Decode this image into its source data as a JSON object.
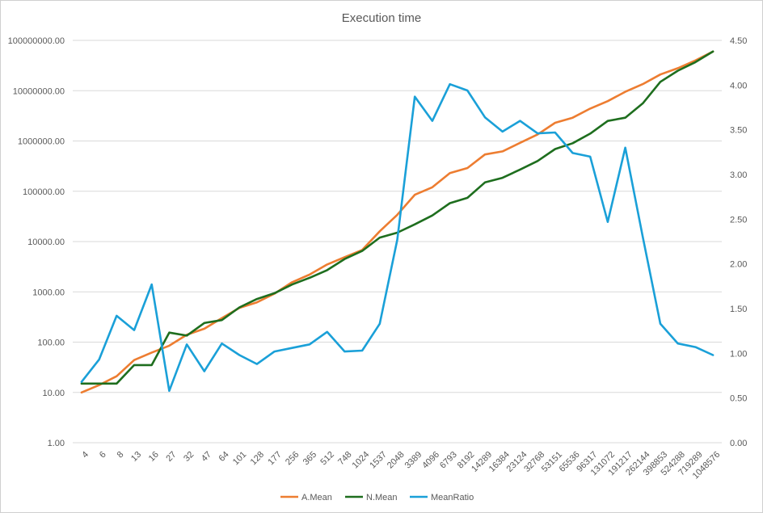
{
  "chart_data": {
    "type": "line",
    "title": "Execution time",
    "categories": [
      "4",
      "6",
      "8",
      "13",
      "16",
      "27",
      "32",
      "47",
      "64",
      "101",
      "128",
      "177",
      "256",
      "365",
      "512",
      "748",
      "1024",
      "1537",
      "2048",
      "3389",
      "4096",
      "6793",
      "8192",
      "14289",
      "16384",
      "23124",
      "32768",
      "53151",
      "65536",
      "96317",
      "131072",
      "191217",
      "262144",
      "398853",
      "524288",
      "719289",
      "1048576"
    ],
    "y_left": {
      "scale": "log",
      "ylim": [
        1,
        100000000
      ],
      "ticks": [
        1,
        10,
        100,
        1000,
        10000,
        100000,
        1000000,
        10000000,
        100000000
      ],
      "tick_labels": [
        "1.00",
        "10.00",
        "100.00",
        "1000.00",
        "10000.00",
        "100000.00",
        "1000000.00",
        "10000000.00",
        "100000000.00"
      ]
    },
    "y_right": {
      "scale": "linear",
      "ylim": [
        0,
        4.5
      ],
      "ticks": [
        0,
        0.5,
        1,
        1.5,
        2,
        2.5,
        3,
        3.5,
        4,
        4.5
      ],
      "tick_labels": [
        "0.00",
        "0.50",
        "1.00",
        "1.50",
        "2.00",
        "2.50",
        "3.00",
        "3.50",
        "4.00",
        "4.50"
      ]
    },
    "grid": true,
    "legend_position": "bottom",
    "series": [
      {
        "name": "A.Mean",
        "axis": "left",
        "color": "#ED7D31",
        "values": [
          10,
          14,
          21,
          44,
          62,
          85,
          140,
          185,
          300,
          480,
          620,
          920,
          1550,
          2200,
          3500,
          4900,
          6800,
          16000,
          34000,
          85000,
          120000,
          230000,
          290000,
          540000,
          620000,
          920000,
          1350000,
          2300000,
          2900000,
          4400000,
          6200000,
          9500000,
          13500000,
          21000000,
          28000000,
          40000000,
          60000000
        ]
      },
      {
        "name": "N.Mean",
        "axis": "left",
        "color": "#1E6E1E",
        "values": [
          15,
          15,
          15,
          35,
          35,
          155,
          135,
          240,
          275,
          490,
          720,
          940,
          1400,
          1900,
          2700,
          4500,
          6500,
          12000,
          15000,
          22000,
          33000,
          58000,
          74000,
          150000,
          185000,
          270000,
          400000,
          690000,
          900000,
          1400000,
          2500000,
          2900000,
          5600000,
          15000000,
          25000000,
          37000000,
          60000000
        ]
      },
      {
        "name": "MeanRatio",
        "axis": "right",
        "color": "#1AA0D8",
        "values": [
          0.68,
          0.93,
          1.42,
          1.26,
          1.77,
          0.58,
          1.1,
          0.8,
          1.11,
          0.98,
          0.88,
          1.02,
          1.06,
          1.1,
          1.24,
          1.02,
          1.03,
          1.33,
          2.27,
          3.87,
          3.6,
          4.01,
          3.94,
          3.64,
          3.48,
          3.6,
          3.46,
          3.47,
          3.24,
          3.2,
          2.47,
          3.3,
          2.3,
          1.33,
          1.11,
          1.07,
          0.98
        ]
      }
    ]
  }
}
